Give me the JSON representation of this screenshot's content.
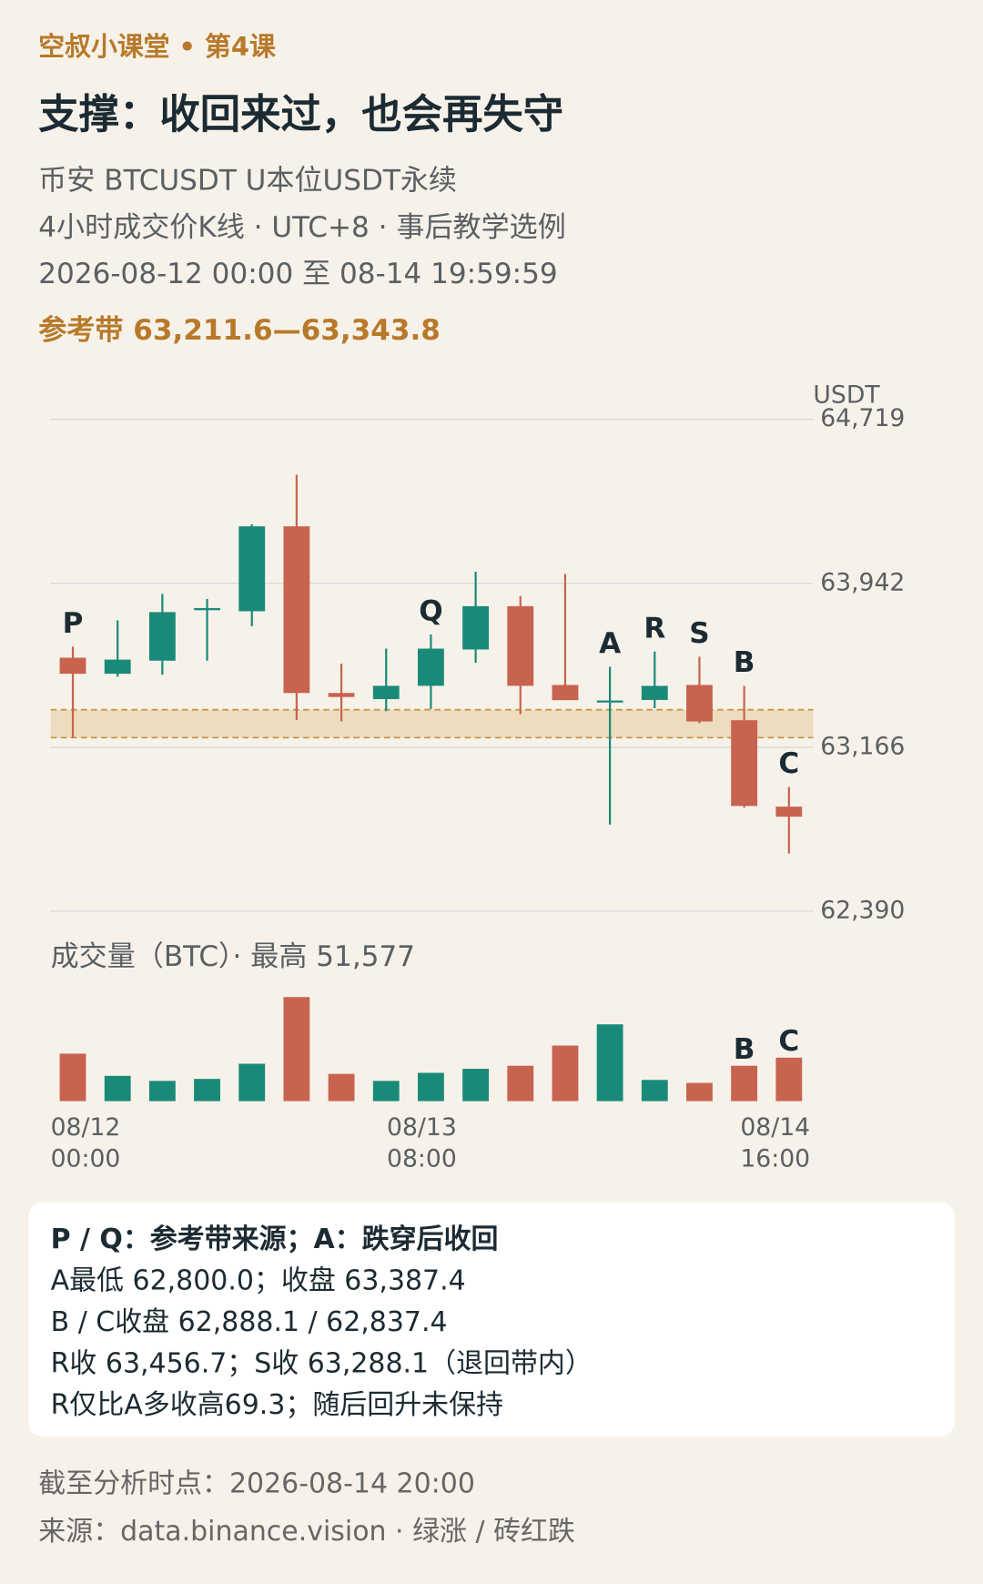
{
  "header": {
    "kicker": "空叔小课堂 • 第4课",
    "title": "支撑：收回来过，也会再失守",
    "subtitle": [
      "币安 BTCUSDT U本位USDT永续",
      "4小时成交价K线 · UTC+8 · 事后教学选例",
      "2026-08-12 00:00 至 08-14 19:59:59"
    ]
  },
  "chart_data": {
    "type": "candlestick",
    "y_unit": "USDT",
    "categories": [
      [
        "08/12",
        "00:00"
      ],
      null,
      null,
      null,
      null,
      null,
      null,
      null,
      [
        "08/13",
        "08:00"
      ],
      null,
      null,
      null,
      null,
      null,
      null,
      null,
      [
        "08/14",
        "16:00"
      ]
    ],
    "open": [
      63590,
      63514,
      63576,
      63815,
      63810,
      64212,
      63423,
      63394,
      63457,
      63629,
      63834,
      63461,
      63380,
      63390,
      63461,
      63294,
      62885
    ],
    "high": [
      63643,
      63767,
      63892,
      63868,
      64222,
      64456,
      63562,
      63633,
      63700,
      63997,
      63882,
      63987,
      63547,
      63619,
      63595,
      63457,
      62978
    ],
    "low": [
      63211.6,
      63500,
      63509,
      63576,
      63739,
      63294,
      63289,
      63337,
      63347,
      63566,
      63323,
      63389,
      62800.0,
      63351,
      63280,
      62880,
      62663
    ],
    "close": [
      63514,
      63581,
      63806,
      63825,
      64212,
      63423,
      63404,
      63457,
      63633,
      63834,
      63457,
      63389,
      63387.4,
      63456.7,
      63288.1,
      62888.1,
      62837.4
    ],
    "up_color": "#1a8a78",
    "down_color": "#c8634f",
    "ylim": [
      62390,
      64719
    ],
    "yticks": [
      {
        "value": 64719,
        "label": "64,719"
      },
      {
        "value": 63942,
        "label": "63,942"
      },
      {
        "value": 63166,
        "label": "63,166"
      },
      {
        "value": 62390,
        "label": "62,390"
      }
    ],
    "grid": true,
    "band": {
      "low": 63211.6,
      "high": 63343.8,
      "label": "参考带 63,211.6—63,343.8",
      "color": "#ecd9b8",
      "line_color": "#c8913f"
    },
    "annotations": [
      {
        "label": "P",
        "index": 0
      },
      {
        "label": "Q",
        "index": 8
      },
      {
        "label": "A",
        "index": 12
      },
      {
        "label": "R",
        "index": 13
      },
      {
        "label": "S",
        "index": 14
      },
      {
        "label": "B",
        "index": 15
      },
      {
        "label": "C",
        "index": 16
      }
    ],
    "volume": {
      "title": "成交量（BTC）· 最高 51,577",
      "ylim": [
        0,
        51577
      ],
      "values": [
        23540,
        12520,
        10015,
        11016,
        18530,
        51577,
        13520,
        10015,
        14020,
        16025,
        17525,
        27540,
        38060,
        10515,
        9015,
        17525,
        21530
      ],
      "annotations": [
        {
          "label": "B",
          "index": 15
        },
        {
          "label": "C",
          "index": 16
        }
      ]
    }
  },
  "notes": {
    "title": "P / Q：参考带来源；A：跌穿后收回",
    "lines": [
      "A最低 62,800.0；收盘 63,387.4",
      "B / C收盘 62,888.1 / 62,837.4",
      "R收 63,456.7；S收 63,288.1（退回带内）",
      "R仅比A多收高69.3；随后回升未保持"
    ]
  },
  "footer": [
    "截至分析时点：2026-08-14 20:00",
    "来源：data.binance.vision · 绿涨 / 砖红跌"
  ]
}
